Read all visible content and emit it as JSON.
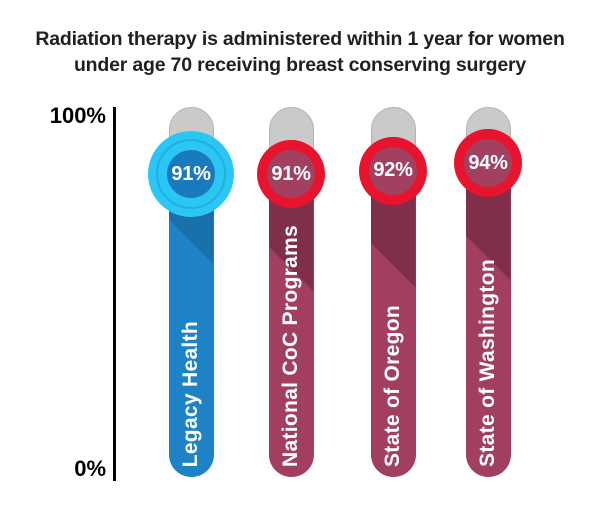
{
  "title": "Radiation therapy is administered within 1 year for women\nunder age 70 receiving breast conserving surgery",
  "chart_data": {
    "type": "bar",
    "title": "Radiation therapy is administered within 1 year for women\nunder age 70 receiving breast conserving surgery",
    "categories": [
      "Legacy Health",
      "National CoC Programs",
      "State of Oregon",
      "State of Washington"
    ],
    "values": [
      91,
      91,
      92,
      94
    ],
    "value_labels": [
      "91%",
      "91%",
      "92%",
      "94%"
    ],
    "ylim": [
      0,
      100
    ],
    "ytick_labels": [
      "100%",
      "0%"
    ],
    "legend": "none",
    "grid": false,
    "orientation": "vertical",
    "track_color": "#cacaca",
    "bar_styles": [
      {
        "bar_color": "#1d82c6",
        "shadow_color": "#1a70ad",
        "ring_color": "#2ac6f4",
        "badge_color": "#1b7abe",
        "highlight": true
      },
      {
        "bar_color": "#a23e5e",
        "shadow_color": "#7f2f49",
        "ring_color": "#e8132c",
        "badge_color": "#a2415f",
        "highlight": false
      },
      {
        "bar_color": "#a23e5e",
        "shadow_color": "#7f2f49",
        "ring_color": "#e8132c",
        "badge_color": "#a2415f",
        "highlight": false
      },
      {
        "bar_color": "#a23e5e",
        "shadow_color": "#7f2f49",
        "ring_color": "#e8132c",
        "badge_color": "#a2415f",
        "highlight": false
      }
    ]
  }
}
